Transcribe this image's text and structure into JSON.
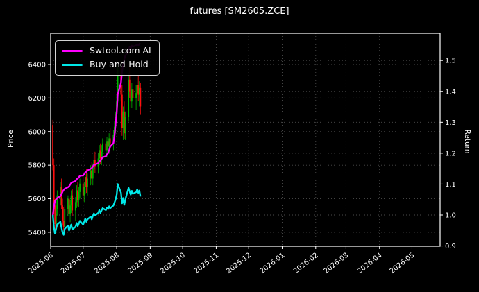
{
  "title": "futures [SM2605.ZCE]",
  "axes": {
    "left_label": "Price",
    "right_label": "Return",
    "price_ticks": [
      5400,
      5600,
      5800,
      6000,
      6200,
      6400
    ],
    "return_ticks": [
      0.9,
      1.0,
      1.1,
      1.2,
      1.3,
      1.4,
      1.5
    ],
    "x_ticks": [
      "2025-06",
      "2025-07",
      "2025-08",
      "2025-09",
      "2025-10",
      "2025-11",
      "2025-12",
      "2026-01",
      "2026-02",
      "2026-03",
      "2026-04",
      "2026-05"
    ]
  },
  "legend": {
    "items": [
      {
        "label": "Swtool.com AI",
        "color": "#ff00ff"
      },
      {
        "label": "Buy-and-Hold",
        "color": "#00e8e8"
      }
    ]
  },
  "colors": {
    "background": "#000000",
    "text": "#ffffff",
    "grid": "#4d4d4d",
    "spine": "#ffffff",
    "candle_up": "#00b800",
    "candle_down": "#ff0f0f",
    "ai_line": "#ff00ff",
    "bh_line": "#00e8e8"
  },
  "chart_data": {
    "type": "candlestick+line",
    "title": "futures [SM2605.ZCE]",
    "xlabel": "",
    "ylabel_left": "Price",
    "ylabel_right": "Return",
    "price_ylim": [
      5317,
      6586
    ],
    "return_ylim": [
      0.899,
      1.588
    ],
    "grid": true,
    "legend_position": "upper left",
    "dates": [
      "2025-06-02",
      "2025-06-03",
      "2025-06-04",
      "2025-06-05",
      "2025-06-06",
      "2025-06-09",
      "2025-06-10",
      "2025-06-11",
      "2025-06-12",
      "2025-06-13",
      "2025-06-16",
      "2025-06-17",
      "2025-06-18",
      "2025-06-19",
      "2025-06-20",
      "2025-06-23",
      "2025-06-24",
      "2025-06-25",
      "2025-06-26",
      "2025-06-27",
      "2025-06-30",
      "2025-07-01",
      "2025-07-02",
      "2025-07-03",
      "2025-07-04",
      "2025-07-07",
      "2025-07-08",
      "2025-07-09",
      "2025-07-10",
      "2025-07-11",
      "2025-07-14",
      "2025-07-15",
      "2025-07-16",
      "2025-07-17",
      "2025-07-18",
      "2025-07-21",
      "2025-07-22",
      "2025-07-23",
      "2025-07-24",
      "2025-07-25",
      "2025-07-28",
      "2025-07-29",
      "2025-07-30",
      "2025-07-31",
      "2025-08-01",
      "2025-08-04",
      "2025-08-05",
      "2025-08-06",
      "2025-08-07",
      "2025-08-08",
      "2025-08-11",
      "2025-08-12",
      "2025-08-13",
      "2025-08-14",
      "2025-08-15",
      "2025-08-18",
      "2025-08-19",
      "2025-08-20",
      "2025-08-21",
      "2025-08-22"
    ],
    "ohlc": [
      [
        6040,
        6070,
        5770,
        5800
      ],
      [
        5800,
        5840,
        5510,
        5560
      ],
      [
        5560,
        5600,
        5410,
        5450
      ],
      [
        5450,
        5560,
        5420,
        5540
      ],
      [
        5540,
        5650,
        5500,
        5620
      ],
      [
        5620,
        5700,
        5560,
        5670
      ],
      [
        5670,
        5720,
        5540,
        5560
      ],
      [
        5560,
        5600,
        5440,
        5470
      ],
      [
        5470,
        5550,
        5400,
        5430
      ],
      [
        5430,
        5560,
        5415,
        5540
      ],
      [
        5540,
        5620,
        5495,
        5600
      ],
      [
        5600,
        5640,
        5480,
        5510
      ],
      [
        5510,
        5590,
        5460,
        5560
      ],
      [
        5560,
        5650,
        5515,
        5620
      ],
      [
        5620,
        5660,
        5495,
        5530
      ],
      [
        5530,
        5610,
        5470,
        5580
      ],
      [
        5580,
        5680,
        5545,
        5650
      ],
      [
        5650,
        5700,
        5555,
        5590
      ],
      [
        5590,
        5670,
        5550,
        5640
      ],
      [
        5640,
        5720,
        5600,
        5690
      ],
      [
        5690,
        5740,
        5585,
        5620
      ],
      [
        5620,
        5700,
        5580,
        5670
      ],
      [
        5670,
        5760,
        5630,
        5730
      ],
      [
        5730,
        5780,
        5635,
        5670
      ],
      [
        5670,
        5750,
        5620,
        5720
      ],
      [
        5720,
        5800,
        5680,
        5770
      ],
      [
        5770,
        5820,
        5685,
        5720
      ],
      [
        5720,
        5810,
        5680,
        5780
      ],
      [
        5780,
        5860,
        5740,
        5830
      ],
      [
        5830,
        5880,
        5755,
        5790
      ],
      [
        5790,
        5870,
        5750,
        5840
      ],
      [
        5840,
        5920,
        5800,
        5890
      ],
      [
        5890,
        5930,
        5805,
        5840
      ],
      [
        5840,
        5920,
        5800,
        5880
      ],
      [
        5880,
        5960,
        5840,
        5930
      ],
      [
        5930,
        5980,
        5855,
        5890
      ],
      [
        5890,
        5970,
        5850,
        5940
      ],
      [
        5940,
        6000,
        5875,
        5910
      ],
      [
        5910,
        5990,
        5870,
        5960
      ],
      [
        5960,
        6020,
        5895,
        5930
      ],
      [
        5930,
        6010,
        5890,
        5980
      ],
      [
        5980,
        6060,
        5940,
        6030
      ],
      [
        6030,
        6120,
        5990,
        6090
      ],
      [
        6090,
        6220,
        6050,
        6180
      ],
      [
        6180,
        6400,
        6150,
        6380
      ],
      [
        6380,
        6430,
        6180,
        6220
      ],
      [
        6220,
        6280,
        5975,
        6020
      ],
      [
        6020,
        6150,
        5950,
        6120
      ],
      [
        6120,
        6180,
        5955,
        5990
      ],
      [
        5990,
        6120,
        5950,
        6090
      ],
      [
        6090,
        6350,
        6060,
        6310
      ],
      [
        6310,
        6390,
        6200,
        6240
      ],
      [
        6240,
        6330,
        6145,
        6180
      ],
      [
        6180,
        6290,
        6140,
        6250
      ],
      [
        6250,
        6300,
        6150,
        6200
      ],
      [
        6200,
        6280,
        6130,
        6230
      ],
      [
        6230,
        6320,
        6175,
        6280
      ],
      [
        6280,
        6330,
        6185,
        6220
      ],
      [
        6220,
        6300,
        6150,
        6260
      ],
      [
        6260,
        6290,
        6100,
        6150
      ]
    ],
    "series": [
      {
        "name": "Swtool.com AI",
        "axis": "return",
        "color": "#ff00ff",
        "values": [
          1.0,
          1.028,
          1.046,
          1.05,
          1.055,
          1.061,
          1.068,
          1.075,
          1.081,
          1.085,
          1.09,
          1.093,
          1.098,
          1.104,
          1.106,
          1.11,
          1.116,
          1.118,
          1.122,
          1.127,
          1.128,
          1.132,
          1.138,
          1.14,
          1.144,
          1.15,
          1.152,
          1.157,
          1.162,
          1.163,
          1.168,
          1.174,
          1.176,
          1.181,
          1.187,
          1.19,
          1.196,
          1.2,
          1.21,
          1.221,
          1.233,
          1.255,
          1.294,
          1.33,
          1.39,
          1.428,
          1.462,
          1.488,
          1.504,
          1.515,
          1.53,
          1.544,
          1.54,
          1.548,
          1.545,
          1.549,
          1.553,
          1.548,
          1.554,
          1.556
        ]
      },
      {
        "name": "Buy-and-Hold",
        "axis": "return",
        "color": "#00e8e8",
        "values": [
          1.0,
          0.959,
          0.94,
          0.955,
          0.969,
          0.978,
          0.959,
          0.943,
          0.936,
          0.955,
          0.966,
          0.95,
          0.959,
          0.969,
          0.953,
          0.962,
          0.974,
          0.964,
          0.972,
          0.981,
          0.969,
          0.978,
          0.988,
          0.978,
          0.986,
          0.995,
          0.986,
          0.997,
          1.005,
          0.998,
          1.007,
          1.016,
          1.007,
          1.014,
          1.022,
          1.016,
          1.024,
          1.019,
          1.028,
          1.022,
          1.031,
          1.04,
          1.05,
          1.066,
          1.1,
          1.072,
          1.038,
          1.055,
          1.033,
          1.05,
          1.088,
          1.076,
          1.066,
          1.078,
          1.069,
          1.074,
          1.083,
          1.072,
          1.079,
          1.06
        ]
      }
    ]
  }
}
